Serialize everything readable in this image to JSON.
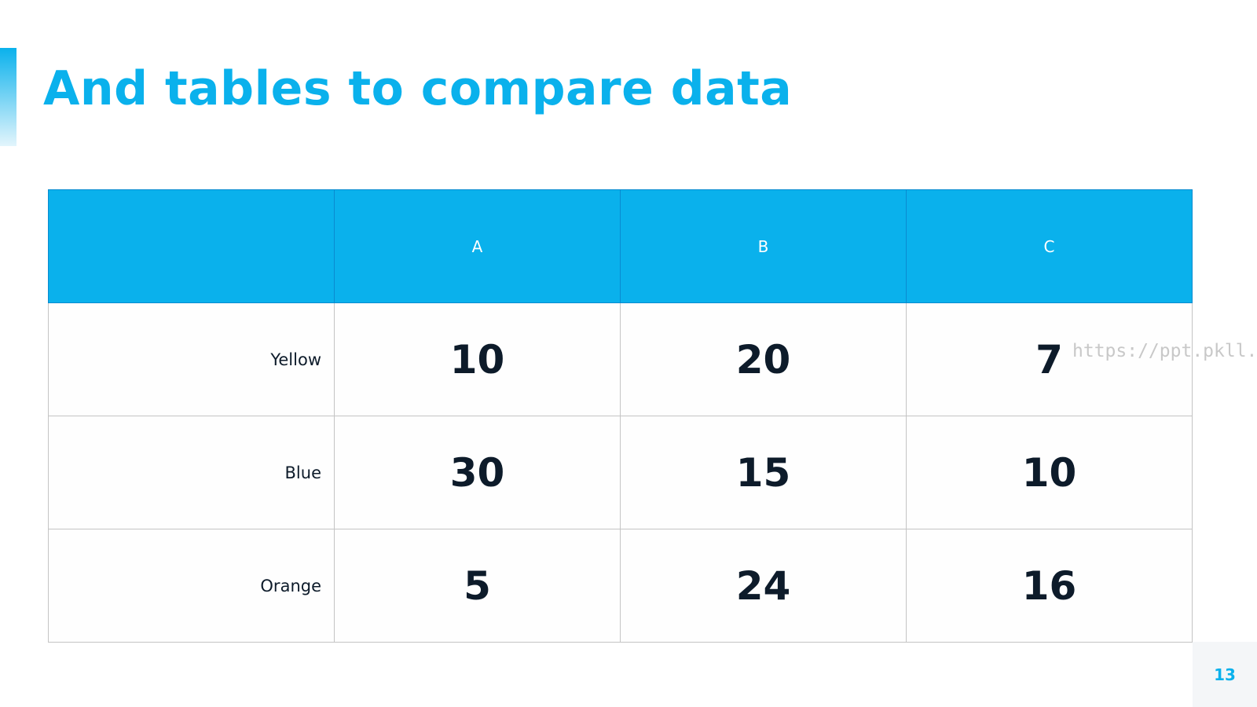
{
  "header": {
    "title": "And tables to compare data"
  },
  "table": {
    "columns": [
      "A",
      "B",
      "C"
    ],
    "rows": [
      {
        "label": "Yellow",
        "values": [
          10,
          20,
          7
        ]
      },
      {
        "label": "Blue",
        "values": [
          30,
          15,
          10
        ]
      },
      {
        "label": "Orange",
        "values": [
          5,
          24,
          16
        ]
      }
    ]
  },
  "watermark": "https://ppt.pkll.de",
  "page_number": "13"
}
